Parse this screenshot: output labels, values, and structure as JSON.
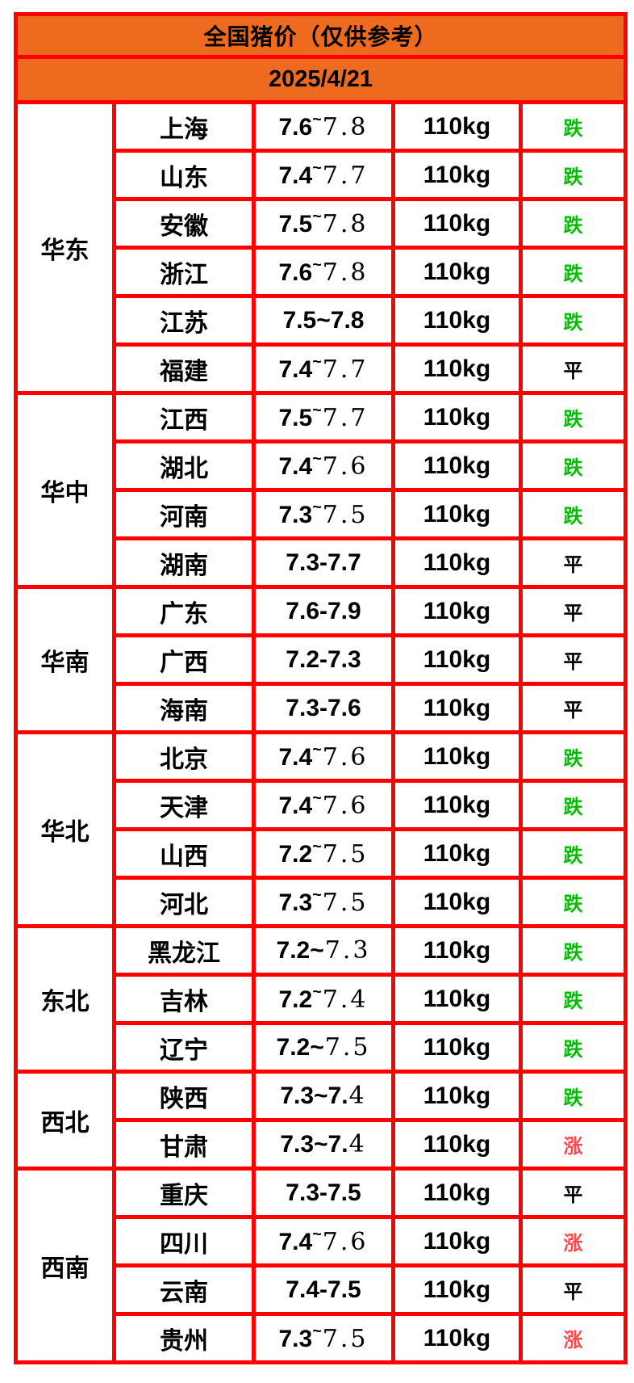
{
  "colors": {
    "orange": "#ED6A1E",
    "border_red": "#FE0000",
    "fall_green": "#00BE00",
    "rise_red": "#FB4A52",
    "flat_black": "#000000",
    "page_background": "#FFFFFF"
  },
  "chart_data": {
    "type": "table",
    "title": "全国猪价（仅供参考）",
    "date": "2025/4/21",
    "weight_standard": "110kg",
    "trend_labels": {
      "fall": "跌",
      "flat": "平",
      "rise": "涨"
    },
    "regions": [
      {
        "name": "华东",
        "rows": [
          {
            "province": "上海",
            "price": "7.6~7.8",
            "price_parts": [
              [
                "b",
                "7.6"
              ],
              [
                "sup",
                "~"
              ],
              [
                "l",
                "7.8"
              ]
            ],
            "weight": "110kg",
            "status": "跌",
            "trend": "fall"
          },
          {
            "province": "山东",
            "price": "7.4~7.7",
            "price_parts": [
              [
                "b",
                "7.4"
              ],
              [
                "sup",
                "~"
              ],
              [
                "l",
                "7.7"
              ]
            ],
            "weight": "110kg",
            "status": "跌",
            "trend": "fall"
          },
          {
            "province": "安徽",
            "price": "7.5~7.8",
            "price_parts": [
              [
                "b",
                "7.5"
              ],
              [
                "sup",
                "~"
              ],
              [
                "l",
                "7.8"
              ]
            ],
            "weight": "110kg",
            "status": "跌",
            "trend": "fall"
          },
          {
            "province": "浙江",
            "price": "7.6~7.8",
            "price_parts": [
              [
                "b",
                "7.6"
              ],
              [
                "sup",
                "~"
              ],
              [
                "l",
                "7.8"
              ]
            ],
            "weight": "110kg",
            "status": "跌",
            "trend": "fall"
          },
          {
            "province": "江苏",
            "price": "7.5~7.8",
            "price_parts": [
              [
                "b",
                "7.5~7.8"
              ]
            ],
            "weight": "110kg",
            "status": "跌",
            "trend": "fall"
          },
          {
            "province": "福建",
            "price": "7.4~7.7",
            "price_parts": [
              [
                "b",
                "7.4"
              ],
              [
                "sup",
                "~"
              ],
              [
                "l",
                "7.7"
              ]
            ],
            "weight": "110kg",
            "status": "平",
            "trend": "flat"
          }
        ]
      },
      {
        "name": "华中",
        "rows": [
          {
            "province": "江西",
            "price": "7.5~7.7",
            "price_parts": [
              [
                "b",
                "7.5"
              ],
              [
                "sup",
                "~"
              ],
              [
                "l",
                "7.7"
              ]
            ],
            "weight": "110kg",
            "status": "跌",
            "trend": "fall"
          },
          {
            "province": "湖北",
            "price": "7.4~7.6",
            "price_parts": [
              [
                "b",
                "7.4"
              ],
              [
                "sup",
                "~"
              ],
              [
                "l",
                "7.6"
              ]
            ],
            "weight": "110kg",
            "status": "跌",
            "trend": "fall"
          },
          {
            "province": "河南",
            "price": "7.3~7.5",
            "price_parts": [
              [
                "b",
                "7.3"
              ],
              [
                "sup",
                "~"
              ],
              [
                "l",
                "7.5"
              ]
            ],
            "weight": "110kg",
            "status": "跌",
            "trend": "fall"
          },
          {
            "province": "湖南",
            "price": "7.3-7.7",
            "price_parts": [
              [
                "b",
                "7.3-7.7"
              ]
            ],
            "weight": "110kg",
            "status": "平",
            "trend": "flat"
          }
        ]
      },
      {
        "name": "华南",
        "rows": [
          {
            "province": "广东",
            "price": "7.6-7.9",
            "price_parts": [
              [
                "b",
                "7.6-7.9"
              ]
            ],
            "weight": "110kg",
            "status": "平",
            "trend": "flat"
          },
          {
            "province": "广西",
            "price": "7.2-7.3",
            "price_parts": [
              [
                "b",
                "7.2-7.3"
              ]
            ],
            "weight": "110kg",
            "status": "平",
            "trend": "flat"
          },
          {
            "province": "海南",
            "price": "7.3-7.6",
            "price_parts": [
              [
                "b",
                "7.3-7.6"
              ]
            ],
            "weight": "110kg",
            "status": "平",
            "trend": "flat"
          }
        ]
      },
      {
        "name": "华北",
        "rows": [
          {
            "province": "北京",
            "price": "7.4~7.6",
            "price_parts": [
              [
                "b",
                "7.4"
              ],
              [
                "sup",
                "~"
              ],
              [
                "l",
                "7.6"
              ]
            ],
            "weight": "110kg",
            "status": "跌",
            "trend": "fall"
          },
          {
            "province": "天津",
            "price": "7.4~7.6",
            "price_parts": [
              [
                "b",
                "7.4"
              ],
              [
                "sup",
                "~"
              ],
              [
                "l",
                "7.6"
              ]
            ],
            "weight": "110kg",
            "status": "跌",
            "trend": "fall"
          },
          {
            "province": "山西",
            "price": "7.2~7.5",
            "price_parts": [
              [
                "b",
                "7.2"
              ],
              [
                "sup",
                "~"
              ],
              [
                "l",
                "7.5"
              ]
            ],
            "weight": "110kg",
            "status": "跌",
            "trend": "fall"
          },
          {
            "province": "河北",
            "price": "7.3~7.5",
            "price_parts": [
              [
                "b",
                "7.3"
              ],
              [
                "sup",
                "~"
              ],
              [
                "l",
                "7.5"
              ]
            ],
            "weight": "110kg",
            "status": "跌",
            "trend": "fall"
          }
        ]
      },
      {
        "name": "东北",
        "rows": [
          {
            "province": "黑龙江",
            "price": "7.2~7.3",
            "price_parts": [
              [
                "b",
                "7.2~"
              ],
              [
                "l",
                "7.3"
              ]
            ],
            "weight": "110kg",
            "status": "跌",
            "trend": "fall"
          },
          {
            "province": "吉林",
            "price": "7.2~7.4",
            "price_parts": [
              [
                "b",
                "7.2"
              ],
              [
                "sup",
                "~"
              ],
              [
                "l",
                "7.4"
              ]
            ],
            "weight": "110kg",
            "status": "跌",
            "trend": "fall"
          },
          {
            "province": "辽宁",
            "price": "7.2~7.5",
            "price_parts": [
              [
                "b",
                "7.2~"
              ],
              [
                "l",
                "7.5"
              ]
            ],
            "weight": "110kg",
            "status": "跌",
            "trend": "fall"
          }
        ]
      },
      {
        "name": "西北",
        "rows": [
          {
            "province": "陕西",
            "price": "7.3~7.4",
            "price_parts": [
              [
                "b",
                "7.3~7."
              ],
              [
                "l",
                "4"
              ]
            ],
            "weight": "110kg",
            "status": "跌",
            "trend": "fall"
          },
          {
            "province": "甘肃",
            "price": "7.3~7.4",
            "price_parts": [
              [
                "b",
                "7.3~7."
              ],
              [
                "l",
                "4"
              ]
            ],
            "weight": "110kg",
            "status": "涨",
            "trend": "rise"
          }
        ]
      },
      {
        "name": "西南",
        "rows": [
          {
            "province": "重庆",
            "price": "7.3-7.5",
            "price_parts": [
              [
                "b",
                "7.3-7.5"
              ]
            ],
            "weight": "110kg",
            "status": "平",
            "trend": "flat"
          },
          {
            "province": "四川",
            "price": "7.4~7.6",
            "price_parts": [
              [
                "b",
                "7.4"
              ],
              [
                "sup",
                "~"
              ],
              [
                "l",
                "7.6"
              ]
            ],
            "weight": "110kg",
            "status": "涨",
            "trend": "rise"
          },
          {
            "province": "云南",
            "price": "7.4-7.5",
            "price_parts": [
              [
                "b",
                "7.4-7.5"
              ]
            ],
            "weight": "110kg",
            "status": "平",
            "trend": "flat"
          },
          {
            "province": "贵州",
            "price": "7.3~7.5",
            "price_parts": [
              [
                "b",
                "7.3"
              ],
              [
                "sup",
                "~"
              ],
              [
                "l",
                "7.5"
              ]
            ],
            "weight": "110kg",
            "status": "涨",
            "trend": "rise"
          }
        ]
      }
    ]
  }
}
